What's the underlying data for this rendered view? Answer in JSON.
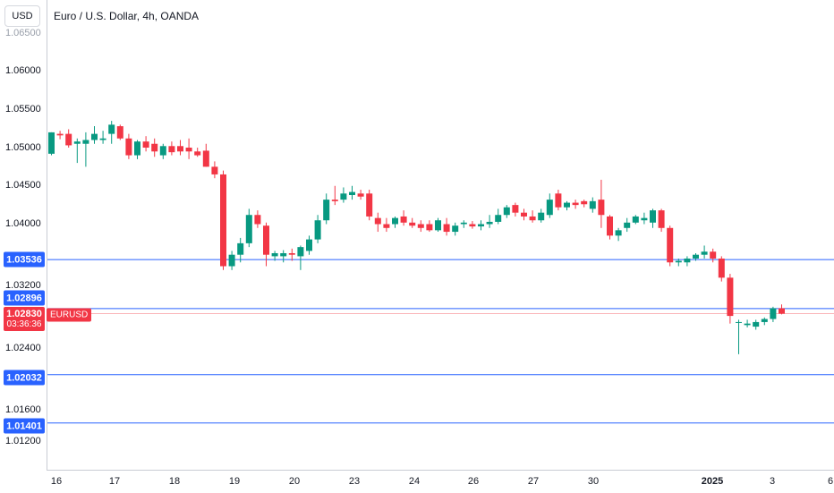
{
  "header": {
    "currency_button": "USD",
    "symbol_title": "Euro / U.S. Dollar, 4h, OANDA"
  },
  "price_axis": {
    "ticks": [
      "1.06000",
      "1.05500",
      "1.05000",
      "1.04500",
      "1.04000",
      "1.03200",
      "1.02400",
      "1.01600",
      "1.01200"
    ],
    "faded_top_tick": "1.06500",
    "levels": [
      "1.03536",
      "1.02896",
      "1.02032",
      "1.01401"
    ],
    "current_price": "1.02830",
    "countdown": "03:36:36",
    "symbol_tag": "EURUSD"
  },
  "time_axis": {
    "labels": [
      "16",
      "17",
      "18",
      "19",
      "20",
      "23",
      "24",
      "26",
      "27",
      "30",
      "2025",
      "3",
      "6"
    ]
  },
  "colors": {
    "up": "#089981",
    "down": "#f23645",
    "level_line": "#2962ff",
    "current_line": "#f23645"
  },
  "chart_data": {
    "type": "candlestick",
    "symbol": "EURUSD",
    "timeframe": "4h",
    "levels": [
      1.03536,
      1.02896,
      1.02032,
      1.01401
    ],
    "current_price": 1.0283,
    "ohlc": [
      [
        1.0492,
        1.052,
        1.049,
        1.052
      ],
      [
        1.0518,
        1.0522,
        1.0511,
        1.0516
      ],
      [
        1.0518,
        1.0524,
        1.05,
        1.0503
      ],
      [
        1.0505,
        1.0512,
        1.048,
        1.0508
      ],
      [
        1.0505,
        1.052,
        1.0475,
        1.051
      ],
      [
        1.051,
        1.0528,
        1.0505,
        1.0518
      ],
      [
        1.051,
        1.0522,
        1.0505,
        1.0512
      ],
      [
        1.0518,
        1.0535,
        1.0505,
        1.053
      ],
      [
        1.0528,
        1.053,
        1.051,
        1.0512
      ],
      [
        1.0512,
        1.0518,
        1.0485,
        1.049
      ],
      [
        1.049,
        1.051,
        1.0485,
        1.0508
      ],
      [
        1.0508,
        1.0515,
        1.0495,
        1.05
      ],
      [
        1.0505,
        1.0512,
        1.0488,
        1.0495
      ],
      [
        1.049,
        1.0505,
        1.0485,
        1.0502
      ],
      [
        1.0502,
        1.0508,
        1.049,
        1.0494
      ],
      [
        1.0502,
        1.051,
        1.049,
        1.0495
      ],
      [
        1.05,
        1.0512,
        1.0485,
        1.0495
      ],
      [
        1.0495,
        1.05,
        1.0488,
        1.049
      ],
      [
        1.0496,
        1.0505,
        1.0475,
        1.0475
      ],
      [
        1.0475,
        1.0482,
        1.046,
        1.0465
      ],
      [
        1.0465,
        1.047,
        1.034,
        1.0345
      ],
      [
        1.0345,
        1.0365,
        1.034,
        1.036
      ],
      [
        1.036,
        1.0382,
        1.035,
        1.0375
      ],
      [
        1.0375,
        1.042,
        1.037,
        1.0412
      ],
      [
        1.0412,
        1.0418,
        1.0395,
        1.04
      ],
      [
        1.0398,
        1.0402,
        1.0345,
        1.036
      ],
      [
        1.0358,
        1.0365,
        1.0352,
        1.0362
      ],
      [
        1.0358,
        1.0366,
        1.035,
        1.0362
      ],
      [
        1.0362,
        1.0368,
        1.0352,
        1.036
      ],
      [
        1.0358,
        1.0372,
        1.034,
        1.037
      ],
      [
        1.0365,
        1.0385,
        1.036,
        1.038
      ],
      [
        1.038,
        1.0412,
        1.0375,
        1.0405
      ],
      [
        1.0405,
        1.044,
        1.04,
        1.0432
      ],
      [
        1.0432,
        1.045,
        1.0425,
        1.043
      ],
      [
        1.0432,
        1.0448,
        1.0428,
        1.044
      ],
      [
        1.0438,
        1.045,
        1.0432,
        1.0442
      ],
      [
        1.044,
        1.0445,
        1.0432,
        1.0436
      ],
      [
        1.044,
        1.0445,
        1.0405,
        1.041
      ],
      [
        1.0408,
        1.0415,
        1.039,
        1.04
      ],
      [
        1.04,
        1.0408,
        1.039,
        1.0395
      ],
      [
        1.04,
        1.041,
        1.0395,
        1.0408
      ],
      [
        1.041,
        1.0418,
        1.0398,
        1.0402
      ],
      [
        1.0402,
        1.0408,
        1.0395,
        1.0398
      ],
      [
        1.04,
        1.0405,
        1.039,
        1.0395
      ],
      [
        1.04,
        1.0405,
        1.039,
        1.0392
      ],
      [
        1.0392,
        1.0408,
        1.039,
        1.0405
      ],
      [
        1.04,
        1.0408,
        1.0385,
        1.039
      ],
      [
        1.039,
        1.0402,
        1.0385,
        1.0398
      ],
      [
        1.04,
        1.0405,
        1.0395,
        1.0402
      ],
      [
        1.04,
        1.0404,
        1.0394,
        1.0397
      ],
      [
        1.0397,
        1.0405,
        1.0392,
        1.04
      ],
      [
        1.04,
        1.0412,
        1.0395,
        1.0403
      ],
      [
        1.0403,
        1.042,
        1.04,
        1.0412
      ],
      [
        1.0412,
        1.0425,
        1.0408,
        1.0422
      ],
      [
        1.0425,
        1.0428,
        1.041,
        1.0415
      ],
      [
        1.0415,
        1.042,
        1.0405,
        1.041
      ],
      [
        1.041,
        1.0418,
        1.0402,
        1.0405
      ],
      [
        1.0405,
        1.042,
        1.0402,
        1.0415
      ],
      [
        1.0412,
        1.044,
        1.0408,
        1.0432
      ],
      [
        1.044,
        1.0445,
        1.0418,
        1.0422
      ],
      [
        1.0422,
        1.043,
        1.0418,
        1.0428
      ],
      [
        1.0428,
        1.0432,
        1.042,
        1.0425
      ],
      [
        1.043,
        1.0432,
        1.0422,
        1.0426
      ],
      [
        1.042,
        1.0435,
        1.0415,
        1.043
      ],
      [
        1.0432,
        1.0458,
        1.0395,
        1.0412
      ],
      [
        1.041,
        1.0412,
        1.038,
        1.0385
      ],
      [
        1.0385,
        1.0395,
        1.0378,
        1.0392
      ],
      [
        1.0395,
        1.0408,
        1.039,
        1.0402
      ],
      [
        1.0402,
        1.0412,
        1.04,
        1.041
      ],
      [
        1.0405,
        1.0415,
        1.04,
        1.0408
      ],
      [
        1.0402,
        1.042,
        1.0395,
        1.0418
      ],
      [
        1.0418,
        1.042,
        1.039,
        1.0395
      ],
      [
        1.0395,
        1.0398,
        1.0345,
        1.035
      ],
      [
        1.035,
        1.0355,
        1.0345,
        1.0352
      ],
      [
        1.035,
        1.0358,
        1.0345,
        1.0355
      ],
      [
        1.0355,
        1.0362,
        1.0352,
        1.036
      ],
      [
        1.036,
        1.0372,
        1.0355,
        1.0364
      ],
      [
        1.0364,
        1.0368,
        1.035,
        1.0355
      ],
      [
        1.0355,
        1.0358,
        1.0325,
        1.033
      ],
      [
        1.033,
        1.0335,
        1.027,
        1.028
      ],
      [
        1.0272,
        1.0275,
        1.023,
        1.0272
      ],
      [
        1.0268,
        1.0275,
        1.0265,
        1.027
      ],
      [
        1.0266,
        1.0275,
        1.0262,
        1.0272
      ],
      [
        1.0272,
        1.0278,
        1.0268,
        1.0276
      ],
      [
        1.0276,
        1.0292,
        1.0272,
        1.029
      ],
      [
        1.029,
        1.0295,
        1.0282,
        1.0283
      ]
    ]
  }
}
